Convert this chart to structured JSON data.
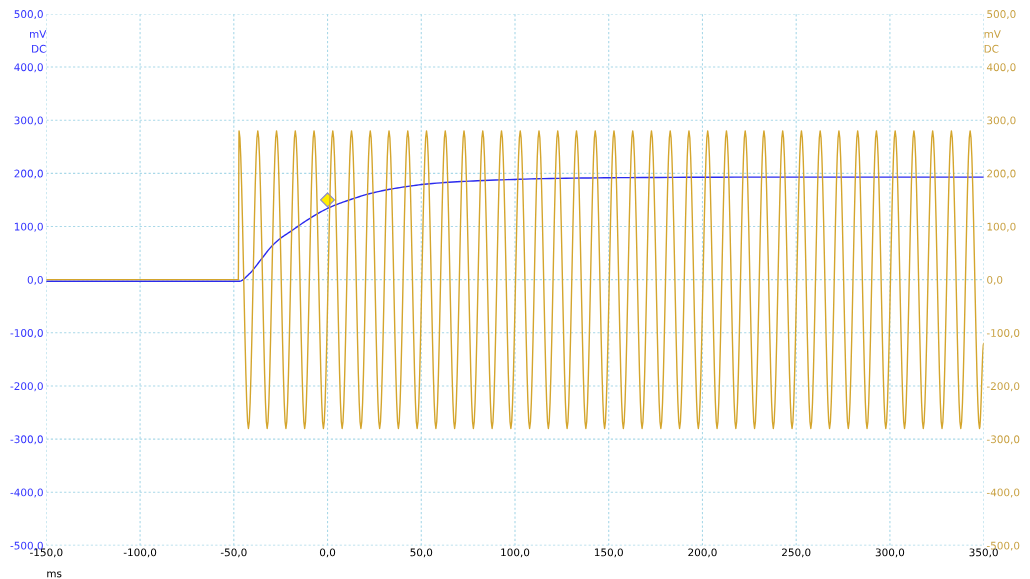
{
  "chart_data": {
    "type": "line",
    "xlabel": "ms",
    "ylabel": "mV\nDC",
    "y2label": "mV\nDC",
    "xlim": [
      -150,
      350
    ],
    "xticks": [
      {
        "value": -150,
        "label": "-150,0"
      },
      {
        "value": -100,
        "label": "-100,0"
      },
      {
        "value": -50,
        "label": "-50,0"
      },
      {
        "value": 0,
        "label": "0,0"
      },
      {
        "value": 50,
        "label": "50,0"
      },
      {
        "value": 100,
        "label": "100,0"
      },
      {
        "value": 150,
        "label": "150,0"
      },
      {
        "value": 200,
        "label": "200,0"
      },
      {
        "value": 250,
        "label": "250,0"
      },
      {
        "value": 300,
        "label": "300,0"
      },
      {
        "value": 350,
        "label": "350,0"
      }
    ],
    "ylim": [
      -500,
      500
    ],
    "yticks": [
      {
        "value": -500,
        "label": "-500,0"
      },
      {
        "value": -400,
        "label": "-400,0"
      },
      {
        "value": -300,
        "label": "-300,0"
      },
      {
        "value": -200,
        "label": "-200,0"
      },
      {
        "value": -100,
        "label": "-100,0"
      },
      {
        "value": 0,
        "label": "0,0"
      },
      {
        "value": 100,
        "label": "100,0"
      },
      {
        "value": 200,
        "label": "200,0"
      },
      {
        "value": 300,
        "label": "300,0"
      },
      {
        "value": 400,
        "label": "400,0"
      },
      {
        "value": 500,
        "label": "500,0"
      }
    ],
    "y2lim": [
      -500,
      500
    ],
    "y2ticks": [
      {
        "value": -500,
        "label": "-500,0"
      },
      {
        "value": -400,
        "label": "-400,0"
      },
      {
        "value": -300,
        "label": "-300,0"
      },
      {
        "value": -200,
        "label": "-200,0"
      },
      {
        "value": -100,
        "label": "-100,0"
      },
      {
        "value": 0,
        "label": "0,0"
      },
      {
        "value": 100,
        "label": "100,0"
      },
      {
        "value": 200,
        "label": "200,0"
      },
      {
        "value": 300,
        "label": "300,0"
      },
      {
        "value": 400,
        "label": "400,0"
      },
      {
        "value": 500,
        "label": "500,0"
      }
    ],
    "grid": true,
    "line_style": "solid",
    "series": [
      {
        "axis": "y2",
        "color": "#d4a52c",
        "marker": "none",
        "x": [
          -150,
          -47.6,
          -47.2,
          -42.2,
          -37.2,
          -32.2,
          -27.2,
          -22.2,
          -17.2,
          -12.2,
          -7.2,
          -2.2,
          2.8,
          7.8,
          12.8,
          17.8,
          22.8,
          27.8,
          32.8,
          37.8,
          42.8,
          47.8,
          52.8,
          57.8,
          62.8,
          67.8,
          72.8,
          77.8,
          82.8,
          87.8,
          92.8,
          97.8,
          102.8,
          107.8,
          112.8,
          117.8,
          122.8,
          127.8,
          132.8,
          137.8,
          142.8,
          147.8,
          152.8,
          157.8,
          162.8,
          167.8,
          172.8,
          177.8,
          182.8,
          187.8,
          192.8,
          197.8,
          202.8,
          207.8,
          212.8,
          217.8,
          222.8,
          227.8,
          232.8,
          237.8,
          242.8,
          247.8,
          252.8,
          257.8,
          262.8,
          267.8,
          272.8,
          277.8,
          282.8,
          287.8,
          292.8,
          297.8,
          302.8,
          307.8,
          312.8,
          317.8,
          322.8,
          327.8,
          332.8,
          337.8,
          342.8,
          347.8,
          350
        ],
        "values": [
          0,
          0,
          280,
          -280,
          280,
          -280,
          280,
          -280,
          280,
          -280,
          280,
          -280,
          280,
          -280,
          280,
          -280,
          280,
          -280,
          280,
          -280,
          280,
          -280,
          280,
          -280,
          280,
          -280,
          280,
          -280,
          280,
          -280,
          280,
          -280,
          280,
          -280,
          280,
          -280,
          280,
          -280,
          280,
          -280,
          280,
          -280,
          280,
          -280,
          280,
          -280,
          280,
          -280,
          280,
          -280,
          280,
          -280,
          280,
          -280,
          280,
          -280,
          280,
          -280,
          280,
          -280,
          280,
          -280,
          280,
          -280,
          280,
          -280,
          280,
          -280,
          280,
          -280,
          280,
          -280,
          280,
          -280,
          280,
          -280,
          280,
          -280,
          280,
          -280,
          280,
          -280,
          -120
        ]
      },
      {
        "axis": "y",
        "color": "#2a2aee",
        "marker": "none",
        "x": [
          -150,
          -47,
          -42,
          -35,
          -30,
          -25,
          -20,
          -10,
          0,
          10,
          25,
          40,
          56,
          80,
          115,
          160,
          250,
          350
        ],
        "values": [
          -3,
          -3,
          10,
          40,
          62,
          78,
          90,
          114,
          134,
          148,
          164,
          174,
          181,
          186,
          190,
          192,
          193,
          193
        ]
      },
      {
        "type": "scatter",
        "axis": "y",
        "color": "#ffee00",
        "marker": "diamond",
        "x": [
          0
        ],
        "values": [
          150
        ]
      }
    ]
  }
}
